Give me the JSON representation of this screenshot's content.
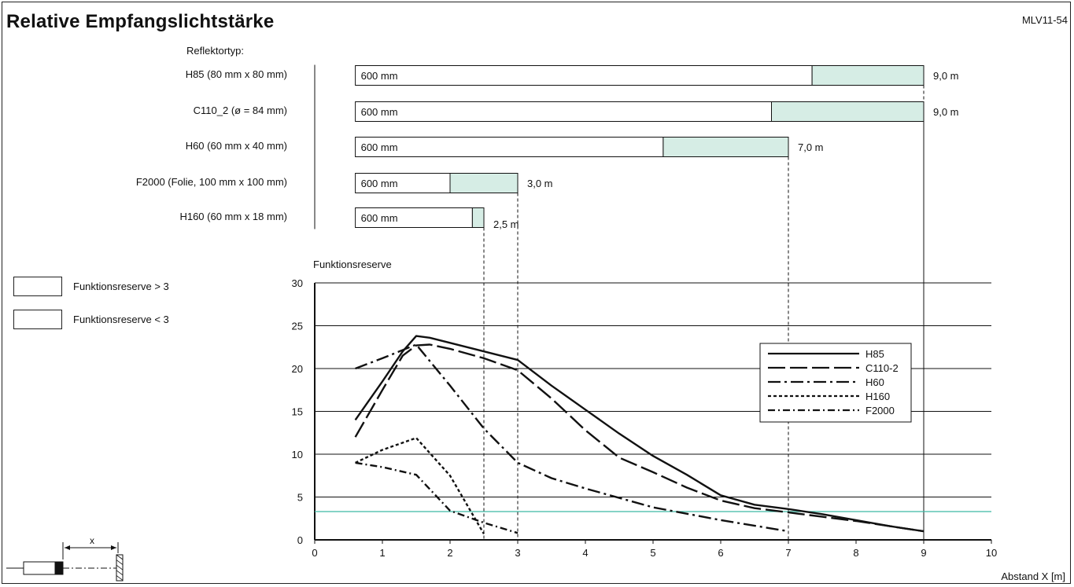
{
  "header": {
    "title": "Relative Empfangslichtstärke",
    "code": "MLV11-54"
  },
  "reflector_header": "Reflektortyp:",
  "reflectors": [
    {
      "name": "H85 (80 mm x 80 mm)",
      "bar_label": "600 mm",
      "start_m": 0.6,
      "reserve_from_m": 7.35,
      "end_m": 9.0,
      "end_label": "9,0 m"
    },
    {
      "name": "C110_2 (ø = 84 mm)",
      "bar_label": "600 mm",
      "start_m": 0.6,
      "reserve_from_m": 6.75,
      "end_m": 9.0,
      "end_label": "9,0 m"
    },
    {
      "name": "H60 (60 mm x 40 mm)",
      "bar_label": "600 mm",
      "start_m": 0.6,
      "reserve_from_m": 5.15,
      "end_m": 7.0,
      "end_label": "7,0 m"
    },
    {
      "name": "F2000 (Folie, 100 mm x 100 mm)",
      "bar_label": "600 mm",
      "start_m": 0.6,
      "reserve_from_m": 2.0,
      "end_m": 3.0,
      "end_label": "3,0 m"
    },
    {
      "name": "H160 (60 mm x 18 mm)",
      "bar_label": "600 mm",
      "start_m": 0.6,
      "reserve_from_m": 2.33,
      "end_m": 2.5,
      "end_label": "2,5 m"
    }
  ],
  "legend_boxes": [
    {
      "label": "Funktionsreserve > 3",
      "color": "#ffffff"
    },
    {
      "label": "Funktionsreserve < 3",
      "color": "#d6ede5"
    }
  ],
  "colors": {
    "reserve_fill": "#d6ede5",
    "threshold_line": "#3cb9a5",
    "ink": "#111111"
  },
  "icons": {
    "sensor": "sensor-diagram-icon"
  },
  "sensor_diagram_label": "x",
  "chart_data": {
    "type": "line",
    "ylabel": "Funktionsreserve",
    "xlabel": "Abstand X [m]",
    "xlim": [
      0,
      10
    ],
    "ylim": [
      0,
      30
    ],
    "xticks": [
      0,
      1,
      2,
      3,
      4,
      5,
      6,
      7,
      8,
      9,
      10
    ],
    "yticks": [
      0,
      5,
      10,
      15,
      20,
      25,
      30
    ],
    "grid": "horizontal",
    "threshold": 3.3,
    "legend_position": "right",
    "series": [
      {
        "name": "H85",
        "dash": "solid",
        "x": [
          0.6,
          1.0,
          1.3,
          1.5,
          1.7,
          2.0,
          2.5,
          3.0,
          3.5,
          4.0,
          4.5,
          5.0,
          5.5,
          6.0,
          6.5,
          7.0,
          7.5,
          8.0,
          8.5,
          9.0
        ],
        "y": [
          14.0,
          18.5,
          22.0,
          23.8,
          23.6,
          23.0,
          22.0,
          21.0,
          18.0,
          15.2,
          12.4,
          9.8,
          7.6,
          5.2,
          4.1,
          3.6,
          3.0,
          2.3,
          1.6,
          1.0
        ]
      },
      {
        "name": "C110-2",
        "dash": "long-dash",
        "x": [
          0.6,
          1.0,
          1.3,
          1.5,
          1.7,
          2.0,
          2.5,
          3.0,
          3.5,
          4.0,
          4.5,
          5.0,
          5.5,
          6.0,
          6.5,
          7.0,
          7.5,
          8.0,
          8.5,
          9.0
        ],
        "y": [
          12.0,
          17.5,
          21.5,
          22.7,
          22.8,
          22.3,
          21.2,
          19.8,
          16.5,
          12.8,
          9.6,
          7.9,
          6.1,
          4.6,
          3.7,
          3.2,
          2.7,
          2.2,
          1.6,
          1.0
        ]
      },
      {
        "name": "H60",
        "dash": "dash-dot",
        "x": [
          0.6,
          1.0,
          1.5,
          2.0,
          2.5,
          3.0,
          3.5,
          4.0,
          5.0,
          6.0,
          7.0
        ],
        "y": [
          20.0,
          21.2,
          22.8,
          18.0,
          13.0,
          9.0,
          7.2,
          6.0,
          3.8,
          2.3,
          1.0
        ]
      },
      {
        "name": "H160",
        "dash": "short-dash",
        "x": [
          0.6,
          1.0,
          1.5,
          2.0,
          2.5
        ],
        "y": [
          9.0,
          10.5,
          11.9,
          7.5,
          0.7
        ]
      },
      {
        "name": "F2000",
        "dash": "dash-dot-fine",
        "x": [
          0.6,
          1.0,
          1.5,
          2.0,
          2.5,
          3.0
        ],
        "y": [
          9.0,
          8.5,
          7.6,
          3.4,
          2.0,
          0.8
        ]
      }
    ]
  }
}
